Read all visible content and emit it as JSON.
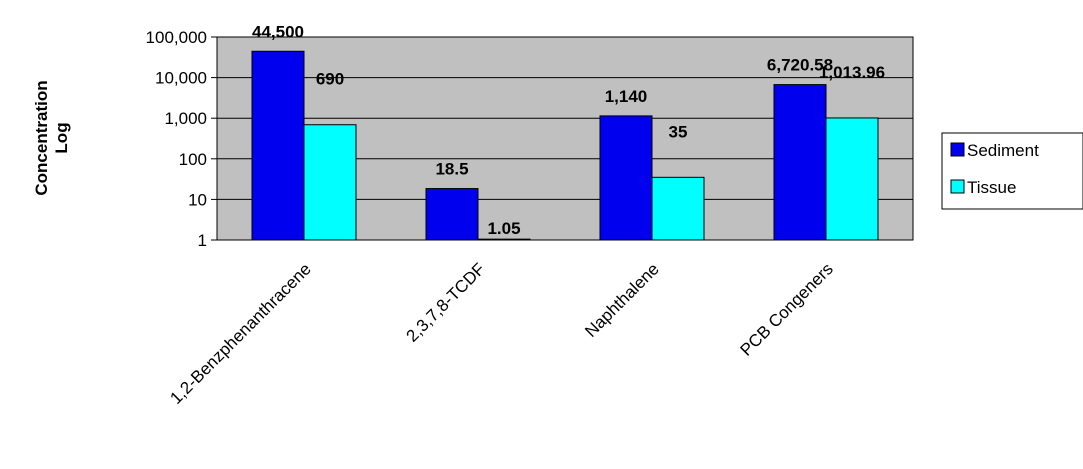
{
  "chart_data": {
    "type": "bar",
    "title": "",
    "xlabel": "",
    "ylabel": [
      "Concentration",
      "Log"
    ],
    "yscale": "log",
    "ylim": [
      1,
      100000
    ],
    "yticks": [
      "1",
      "10",
      "100",
      "1,000",
      "10,000",
      "100,000"
    ],
    "categories": [
      "1,2-Benzphenanthracene",
      "2,3,7,8-TCDF",
      "Naphthalene",
      "PCB Congeners"
    ],
    "series": [
      {
        "name": "Sediment",
        "color": "#0000ee",
        "values": [
          44500,
          18.5,
          1140,
          6720.58
        ],
        "labels": [
          "44,500",
          "18.5",
          "1,140",
          "6,720.58"
        ]
      },
      {
        "name": "Tissue",
        "color": "#00ffff",
        "values": [
          690,
          1.05,
          35,
          1013.96
        ],
        "labels": [
          "690",
          "1.05",
          "35",
          "1,013.96"
        ]
      }
    ],
    "grid": true,
    "plot_background": "#c0c0c0",
    "legend_position": "right"
  }
}
